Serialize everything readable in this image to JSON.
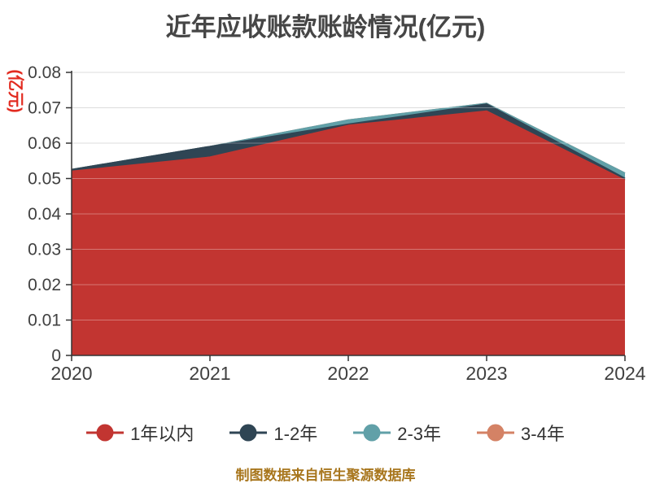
{
  "title": "近年应收账款账龄情况(亿元)",
  "footer": "制图数据来自恒生聚源数据库",
  "colors": {
    "title": "#464646",
    "axis_line": "#333333",
    "axis_label": "#404040",
    "gridline": "#cccccc",
    "y_axis_name": "#e22b20",
    "footer": "#a8761d",
    "background": "#ffffff"
  },
  "legend": {
    "position": "bottom",
    "items": [
      "1年以内",
      "1-2年",
      "2-3年",
      "3-4年"
    ]
  },
  "chart_data": {
    "type": "area",
    "stacked": true,
    "title": "近年应收账款账龄情况(亿元)",
    "categories": [
      "2020",
      "2021",
      "2022",
      "2023",
      "2024"
    ],
    "series": [
      {
        "name": "1年以内",
        "color": "#c23531",
        "values": [
          0.052,
          0.056,
          0.065,
          0.069,
          0.0495
        ]
      },
      {
        "name": "1-2年",
        "color": "#2f4554",
        "values": [
          0.0005,
          0.003,
          0.0003,
          0.002,
          0.0005
        ]
      },
      {
        "name": "2-3年",
        "color": "#61a0a8",
        "values": [
          0,
          0,
          0.0012,
          0.0002,
          0.0015
        ]
      },
      {
        "name": "3-4年",
        "color": "#d48265",
        "values": [
          0,
          0,
          0,
          0,
          0
        ]
      }
    ],
    "xlabel": "",
    "ylabel": "(亿元)",
    "ylim": [
      0,
      0.08
    ],
    "y_tick_step": 0.01,
    "y_tick_labels": [
      "0",
      "0.01",
      "0.02",
      "0.03",
      "0.04",
      "0.05",
      "0.06",
      "0.07",
      "0.08"
    ],
    "grid": true,
    "legend_position": "bottom"
  }
}
